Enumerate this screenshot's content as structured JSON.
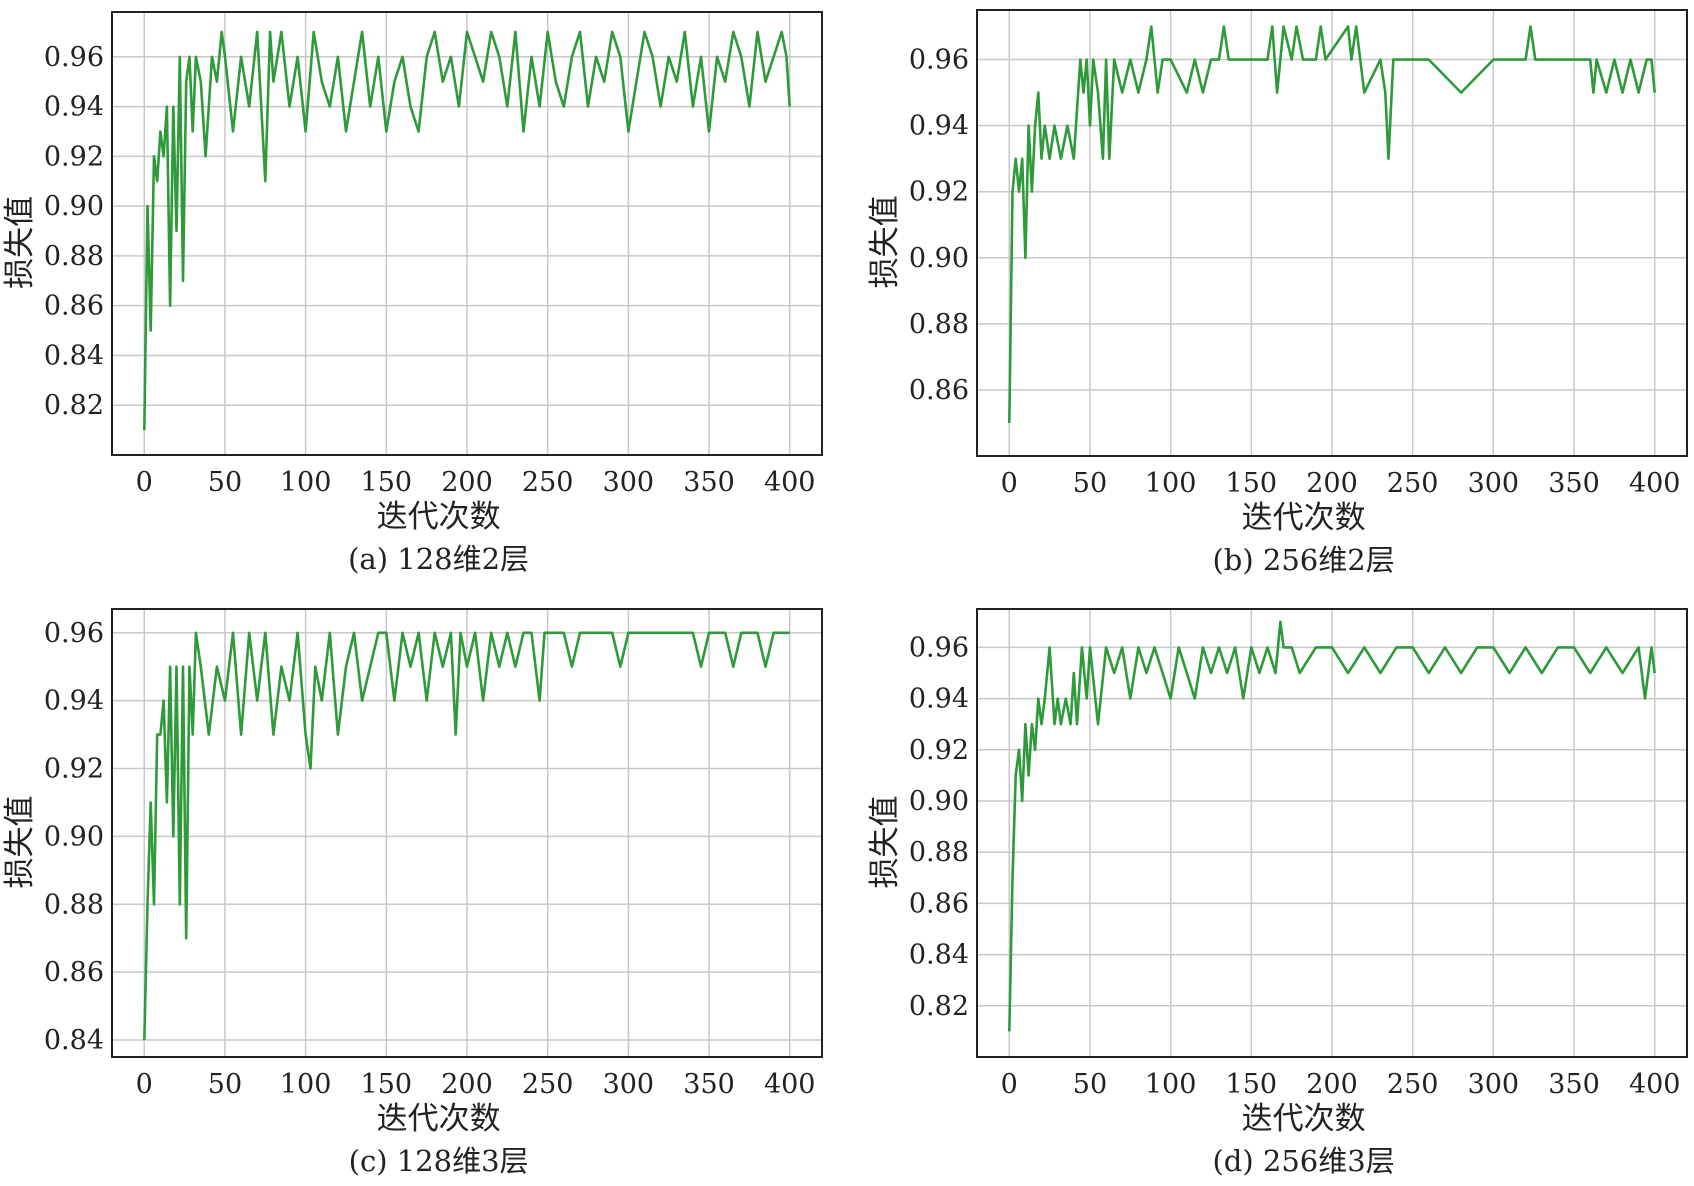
{
  "style": {
    "line_color": "#2f9a3a",
    "grid_color": "#c8c8c8",
    "frame_color": "#222222"
  },
  "chart_data": [
    {
      "type": "line",
      "caption": "(a) 128维2层",
      "xlabel": "迭代次数",
      "ylabel": "损失值",
      "xlim": [
        -20,
        420
      ],
      "ylim": [
        0.8,
        0.978
      ],
      "xticks": [
        0,
        50,
        100,
        150,
        200,
        250,
        300,
        350,
        400
      ],
      "xtick_labels": [
        "0",
        "50",
        "100",
        "150",
        "200",
        "250",
        "300",
        "350",
        "400"
      ],
      "yticks": [
        0.82,
        0.84,
        0.86,
        0.88,
        0.9,
        0.92,
        0.94,
        0.96
      ],
      "ytick_labels": [
        "0.82",
        "0.84",
        "0.86",
        "0.88",
        "0.90",
        "0.92",
        "0.94",
        "0.96"
      ],
      "grid": true,
      "series": [
        {
          "x": [
            0,
            2,
            4,
            6,
            8,
            10,
            12,
            14,
            16,
            18,
            20,
            22,
            24,
            26,
            28,
            30,
            32,
            35,
            38,
            42,
            45,
            48,
            50,
            55,
            60,
            65,
            70,
            75,
            78,
            80,
            85,
            90,
            95,
            100,
            105,
            110,
            115,
            120,
            125,
            130,
            135,
            140,
            145,
            150,
            155,
            160,
            165,
            170,
            175,
            180,
            185,
            190,
            195,
            200,
            205,
            210,
            215,
            220,
            225,
            230,
            235,
            240,
            245,
            250,
            255,
            260,
            265,
            270,
            275,
            280,
            285,
            290,
            295,
            300,
            305,
            310,
            315,
            320,
            325,
            330,
            335,
            340,
            345,
            350,
            355,
            360,
            365,
            370,
            375,
            380,
            385,
            390,
            395,
            398,
            400
          ],
          "y": [
            0.81,
            0.9,
            0.85,
            0.92,
            0.91,
            0.93,
            0.92,
            0.94,
            0.86,
            0.94,
            0.89,
            0.96,
            0.87,
            0.95,
            0.96,
            0.93,
            0.96,
            0.95,
            0.92,
            0.96,
            0.95,
            0.97,
            0.96,
            0.93,
            0.96,
            0.94,
            0.97,
            0.91,
            0.97,
            0.95,
            0.97,
            0.94,
            0.96,
            0.93,
            0.97,
            0.95,
            0.94,
            0.96,
            0.93,
            0.95,
            0.97,
            0.94,
            0.96,
            0.93,
            0.95,
            0.96,
            0.94,
            0.93,
            0.96,
            0.97,
            0.95,
            0.96,
            0.94,
            0.97,
            0.96,
            0.95,
            0.97,
            0.96,
            0.94,
            0.97,
            0.93,
            0.96,
            0.94,
            0.97,
            0.95,
            0.94,
            0.96,
            0.97,
            0.94,
            0.96,
            0.95,
            0.97,
            0.96,
            0.93,
            0.95,
            0.97,
            0.96,
            0.94,
            0.96,
            0.95,
            0.97,
            0.94,
            0.96,
            0.93,
            0.96,
            0.95,
            0.97,
            0.96,
            0.94,
            0.97,
            0.95,
            0.96,
            0.97,
            0.96,
            0.94
          ]
        }
      ]
    },
    {
      "type": "line",
      "caption": "(b) 256维2层",
      "xlabel": "迭代次数",
      "ylabel": "损失值",
      "xlim": [
        -20,
        420
      ],
      "ylim": [
        0.84,
        0.975
      ],
      "xticks": [
        0,
        50,
        100,
        150,
        200,
        250,
        300,
        350,
        400
      ],
      "xtick_labels": [
        "0",
        "50",
        "100",
        "150",
        "200",
        "250",
        "300",
        "350",
        "400"
      ],
      "yticks": [
        0.86,
        0.88,
        0.9,
        0.92,
        0.94,
        0.96
      ],
      "ytick_labels": [
        "0.86",
        "0.88",
        "0.90",
        "0.92",
        "0.94",
        "0.96"
      ],
      "grid": true,
      "series": [
        {
          "x": [
            0,
            2,
            4,
            6,
            8,
            10,
            12,
            14,
            16,
            18,
            20,
            22,
            25,
            28,
            32,
            36,
            40,
            44,
            46,
            48,
            50,
            52,
            55,
            58,
            60,
            62,
            65,
            70,
            75,
            80,
            85,
            88,
            90,
            92,
            95,
            100,
            110,
            115,
            120,
            125,
            130,
            133,
            136,
            140,
            150,
            160,
            163,
            166,
            170,
            175,
            178,
            182,
            190,
            193,
            196,
            210,
            212,
            215,
            220,
            230,
            233,
            235,
            238,
            245,
            250,
            260,
            280,
            300,
            315,
            320,
            323,
            326,
            330,
            340,
            360,
            362,
            364,
            370,
            375,
            380,
            385,
            390,
            395,
            398,
            400
          ],
          "y": [
            0.85,
            0.92,
            0.93,
            0.92,
            0.93,
            0.9,
            0.94,
            0.92,
            0.94,
            0.95,
            0.93,
            0.94,
            0.93,
            0.94,
            0.93,
            0.94,
            0.93,
            0.96,
            0.95,
            0.96,
            0.94,
            0.96,
            0.95,
            0.93,
            0.96,
            0.93,
            0.96,
            0.95,
            0.96,
            0.95,
            0.96,
            0.97,
            0.96,
            0.95,
            0.96,
            0.96,
            0.95,
            0.96,
            0.95,
            0.96,
            0.96,
            0.97,
            0.96,
            0.96,
            0.96,
            0.96,
            0.97,
            0.95,
            0.97,
            0.96,
            0.97,
            0.96,
            0.96,
            0.97,
            0.96,
            0.97,
            0.96,
            0.97,
            0.95,
            0.96,
            0.95,
            0.93,
            0.96,
            0.96,
            0.96,
            0.96,
            0.95,
            0.96,
            0.96,
            0.96,
            0.97,
            0.96,
            0.96,
            0.96,
            0.96,
            0.95,
            0.96,
            0.95,
            0.96,
            0.95,
            0.96,
            0.95,
            0.96,
            0.96,
            0.95
          ]
        }
      ]
    },
    {
      "type": "line",
      "caption": "(c) 128维3层",
      "xlabel": "迭代次数",
      "ylabel": "损失值",
      "xlim": [
        -20,
        420
      ],
      "ylim": [
        0.835,
        0.967
      ],
      "xticks": [
        0,
        50,
        100,
        150,
        200,
        250,
        300,
        350,
        400
      ],
      "xtick_labels": [
        "0",
        "50",
        "100",
        "150",
        "200",
        "250",
        "300",
        "350",
        "400"
      ],
      "yticks": [
        0.84,
        0.86,
        0.88,
        0.9,
        0.92,
        0.94,
        0.96
      ],
      "ytick_labels": [
        "0.84",
        "0.86",
        "0.88",
        "0.90",
        "0.92",
        "0.94",
        "0.96"
      ],
      "grid": true,
      "series": [
        {
          "x": [
            0,
            2,
            4,
            6,
            8,
            10,
            12,
            14,
            16,
            18,
            20,
            22,
            24,
            26,
            28,
            30,
            32,
            35,
            40,
            45,
            50,
            55,
            60,
            65,
            70,
            75,
            80,
            85,
            90,
            95,
            100,
            103,
            106,
            110,
            115,
            120,
            125,
            130,
            135,
            140,
            145,
            150,
            155,
            160,
            165,
            170,
            175,
            180,
            185,
            190,
            193,
            196,
            200,
            205,
            210,
            215,
            220,
            225,
            230,
            235,
            240,
            245,
            248,
            252,
            260,
            265,
            270,
            280,
            290,
            295,
            300,
            320,
            340,
            345,
            350,
            360,
            365,
            370,
            375,
            380,
            385,
            390,
            395,
            400
          ],
          "y": [
            0.84,
            0.88,
            0.91,
            0.88,
            0.93,
            0.93,
            0.94,
            0.91,
            0.95,
            0.9,
            0.95,
            0.88,
            0.95,
            0.87,
            0.95,
            0.93,
            0.96,
            0.95,
            0.93,
            0.95,
            0.94,
            0.96,
            0.93,
            0.96,
            0.94,
            0.96,
            0.93,
            0.95,
            0.94,
            0.96,
            0.93,
            0.92,
            0.95,
            0.94,
            0.96,
            0.93,
            0.95,
            0.96,
            0.94,
            0.95,
            0.96,
            0.96,
            0.94,
            0.96,
            0.95,
            0.96,
            0.94,
            0.96,
            0.95,
            0.96,
            0.93,
            0.96,
            0.95,
            0.96,
            0.94,
            0.96,
            0.95,
            0.96,
            0.95,
            0.96,
            0.96,
            0.94,
            0.96,
            0.96,
            0.96,
            0.95,
            0.96,
            0.96,
            0.96,
            0.95,
            0.96,
            0.96,
            0.96,
            0.95,
            0.96,
            0.96,
            0.95,
            0.96,
            0.96,
            0.96,
            0.95,
            0.96,
            0.96,
            0.96
          ]
        }
      ]
    },
    {
      "type": "line",
      "caption": "(d) 256维3层",
      "xlabel": "迭代次数",
      "ylabel": "损失值",
      "xlim": [
        -20,
        420
      ],
      "ylim": [
        0.8,
        0.975
      ],
      "xticks": [
        0,
        50,
        100,
        150,
        200,
        250,
        300,
        350,
        400
      ],
      "xtick_labels": [
        "0",
        "50",
        "100",
        "150",
        "200",
        "250",
        "300",
        "350",
        "400"
      ],
      "yticks": [
        0.82,
        0.84,
        0.86,
        0.88,
        0.9,
        0.92,
        0.94,
        0.96
      ],
      "ytick_labels": [
        "0.82",
        "0.84",
        "0.86",
        "0.88",
        "0.90",
        "0.92",
        "0.94",
        "0.96"
      ],
      "grid": true,
      "series": [
        {
          "x": [
            0,
            2,
            4,
            6,
            8,
            10,
            12,
            14,
            16,
            18,
            20,
            22,
            25,
            28,
            30,
            32,
            35,
            38,
            40,
            42,
            45,
            48,
            50,
            55,
            60,
            65,
            70,
            75,
            80,
            85,
            90,
            95,
            100,
            105,
            110,
            115,
            120,
            125,
            130,
            135,
            140,
            145,
            150,
            155,
            160,
            165,
            168,
            170,
            175,
            180,
            190,
            200,
            210,
            220,
            230,
            240,
            250,
            260,
            270,
            280,
            290,
            300,
            310,
            320,
            330,
            340,
            350,
            360,
            370,
            380,
            390,
            394,
            398,
            400
          ],
          "y": [
            0.81,
            0.87,
            0.91,
            0.92,
            0.9,
            0.93,
            0.91,
            0.93,
            0.92,
            0.94,
            0.93,
            0.94,
            0.96,
            0.93,
            0.94,
            0.93,
            0.94,
            0.93,
            0.95,
            0.93,
            0.96,
            0.94,
            0.96,
            0.93,
            0.96,
            0.95,
            0.96,
            0.94,
            0.96,
            0.95,
            0.96,
            0.95,
            0.94,
            0.96,
            0.95,
            0.94,
            0.96,
            0.95,
            0.96,
            0.95,
            0.96,
            0.94,
            0.96,
            0.95,
            0.96,
            0.95,
            0.97,
            0.96,
            0.96,
            0.95,
            0.96,
            0.96,
            0.95,
            0.96,
            0.95,
            0.96,
            0.96,
            0.95,
            0.96,
            0.95,
            0.96,
            0.96,
            0.95,
            0.96,
            0.95,
            0.96,
            0.96,
            0.95,
            0.96,
            0.95,
            0.96,
            0.94,
            0.96,
            0.95
          ]
        }
      ]
    }
  ]
}
